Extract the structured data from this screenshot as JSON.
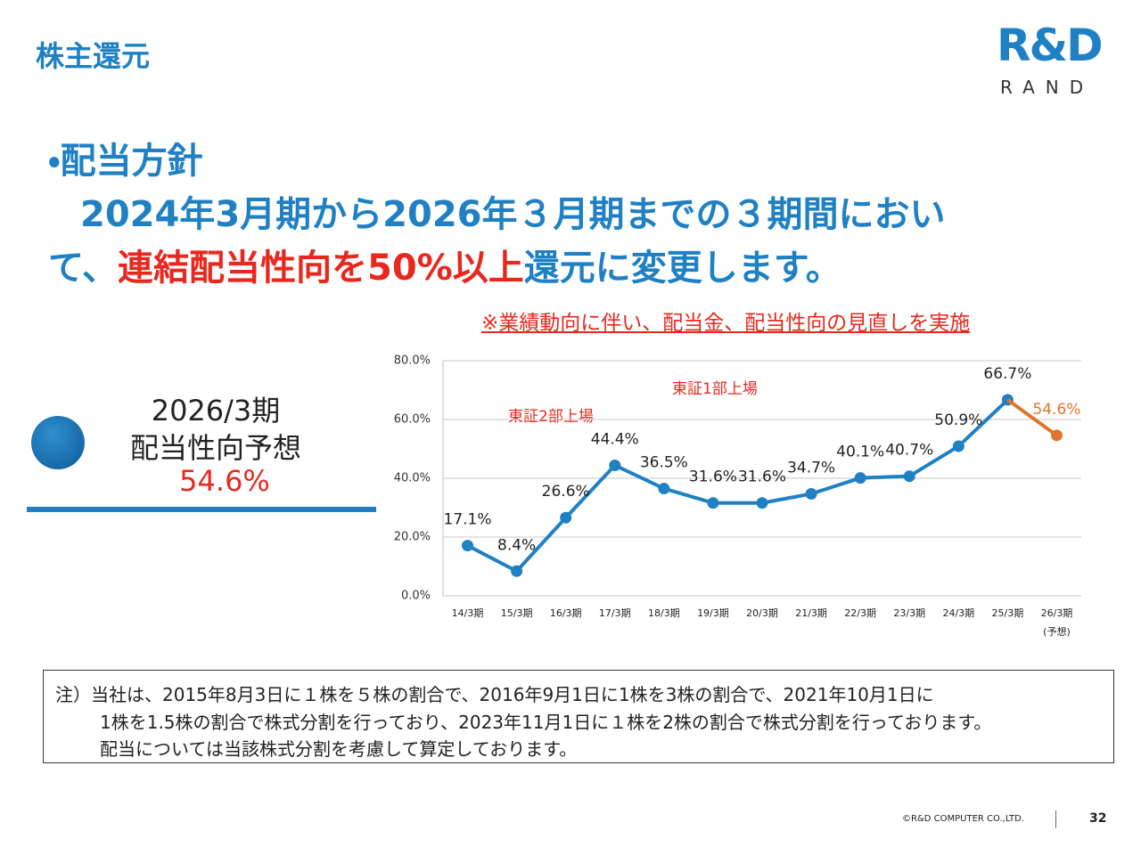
{
  "header": {
    "title": "株主還元",
    "logo_mark": "R&D",
    "logo_name": "RAND"
  },
  "policy": {
    "heading": "・配当方針",
    "line1": "2024年3月期から2026年３月期までの３期間におい",
    "line2_start": "て、",
    "line2_highlight": "連結配当性向を50%以上",
    "line2_end": "還元に変更します。",
    "remark": "※業績動向に伴い、配当金、配当性向の見直しを実施"
  },
  "forecast_panel": {
    "period": "2026/3期",
    "label": "配当性向予想",
    "value": "54.6%"
  },
  "chart_data": {
    "type": "line",
    "categories": [
      "14/3期",
      "15/3期",
      "16/3期",
      "17/3期",
      "18/3期",
      "19/3期",
      "20/3期",
      "21/3期",
      "22/3期",
      "23/3期",
      "24/3期",
      "25/3期",
      "26/3期"
    ],
    "category_note": "(予想)",
    "series": [
      {
        "color": "#1f80c4",
        "values": [
          17.1,
          8.4,
          26.6,
          44.4,
          36.5,
          31.6,
          31.6,
          34.7,
          40.1,
          40.7,
          50.9,
          66.7,
          null
        ],
        "value_labels": [
          "17.1%",
          "8.4%",
          "26.6%",
          "44.4%",
          "36.5%",
          "31.6%",
          "31.6%",
          "34.7%",
          "40.1%",
          "40.7%",
          "50.9%",
          "66.7%",
          null
        ]
      },
      {
        "color": "#e0742a",
        "values": [
          null,
          null,
          null,
          null,
          null,
          null,
          null,
          null,
          null,
          null,
          null,
          null,
          54.6
        ],
        "value_labels": [
          null,
          null,
          null,
          null,
          null,
          null,
          null,
          null,
          null,
          null,
          null,
          null,
          "54.6%"
        ]
      }
    ],
    "ylim": [
      0,
      80
    ],
    "yticks": [
      {
        "value": 0,
        "label": "0.0%"
      },
      {
        "value": 20,
        "label": "20.0%"
      },
      {
        "value": 40,
        "label": "40.0%"
      },
      {
        "value": 60,
        "label": "60.0%"
      },
      {
        "value": 80,
        "label": "80.0%"
      }
    ],
    "grid": true,
    "annotations": [
      "東証2部上場",
      "東証1部上場"
    ]
  },
  "note": {
    "line1": "注）当社は、2015年8月3日に１株を５株の割合で、2016年9月1日に1株を3株の割合で、2021年10月1日に",
    "line2": "1株を1.5株の割合で株式分割を行っており、2023年11月1日に１株を2株の割合で株式分割を行っております。",
    "line3": "配当については当該株式分割を考慮して算定しております。"
  },
  "footer": {
    "copyright": "©R&D COMPUTER CO.,LTD.",
    "page": "32"
  }
}
